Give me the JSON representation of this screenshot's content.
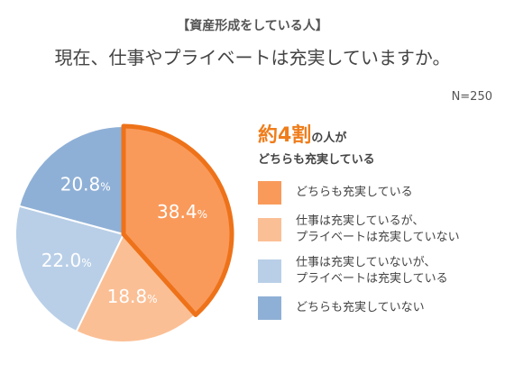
{
  "header": {
    "subtitle": "【資産形成をしている人】",
    "title": "現在、仕事やプライベートは充実していますか。",
    "sample": "N=250"
  },
  "headline": {
    "number": "約4割",
    "rest": "の人が",
    "line2": "どちらも充実している"
  },
  "colors": {
    "accent_outline": "#ee7219",
    "both_fulfilled": "#f99a5b",
    "work_only": "#fbbf95",
    "private_only": "#b9cfe7",
    "neither": "#8fb0d6"
  },
  "chart_data": {
    "type": "pie",
    "categories": [
      "どちらも充実している",
      "仕事は充実しているが、プライベートは充実していない",
      "仕事は充実していないが、プライベートは充実している",
      "どちらも充実していない"
    ],
    "values": [
      38.4,
      18.8,
      22.0,
      20.8
    ],
    "value_labels": [
      "38.4",
      "18.8",
      "22.0",
      "20.8"
    ],
    "unit": "%",
    "colors": [
      "#f99a5b",
      "#fbbf95",
      "#b9cfe7",
      "#8fb0d6"
    ],
    "highlighted_index": 0,
    "start": "12 o'clock, clockwise",
    "legend_position": "right"
  },
  "legend": [
    {
      "lines": [
        "どちらも充実している"
      ]
    },
    {
      "lines": [
        "仕事は充実しているが、",
        "プライベートは充実していない"
      ]
    },
    {
      "lines": [
        "仕事は充実していないが、",
        "プライベートは充実している"
      ]
    },
    {
      "lines": [
        "どちらも充実していない"
      ]
    }
  ]
}
